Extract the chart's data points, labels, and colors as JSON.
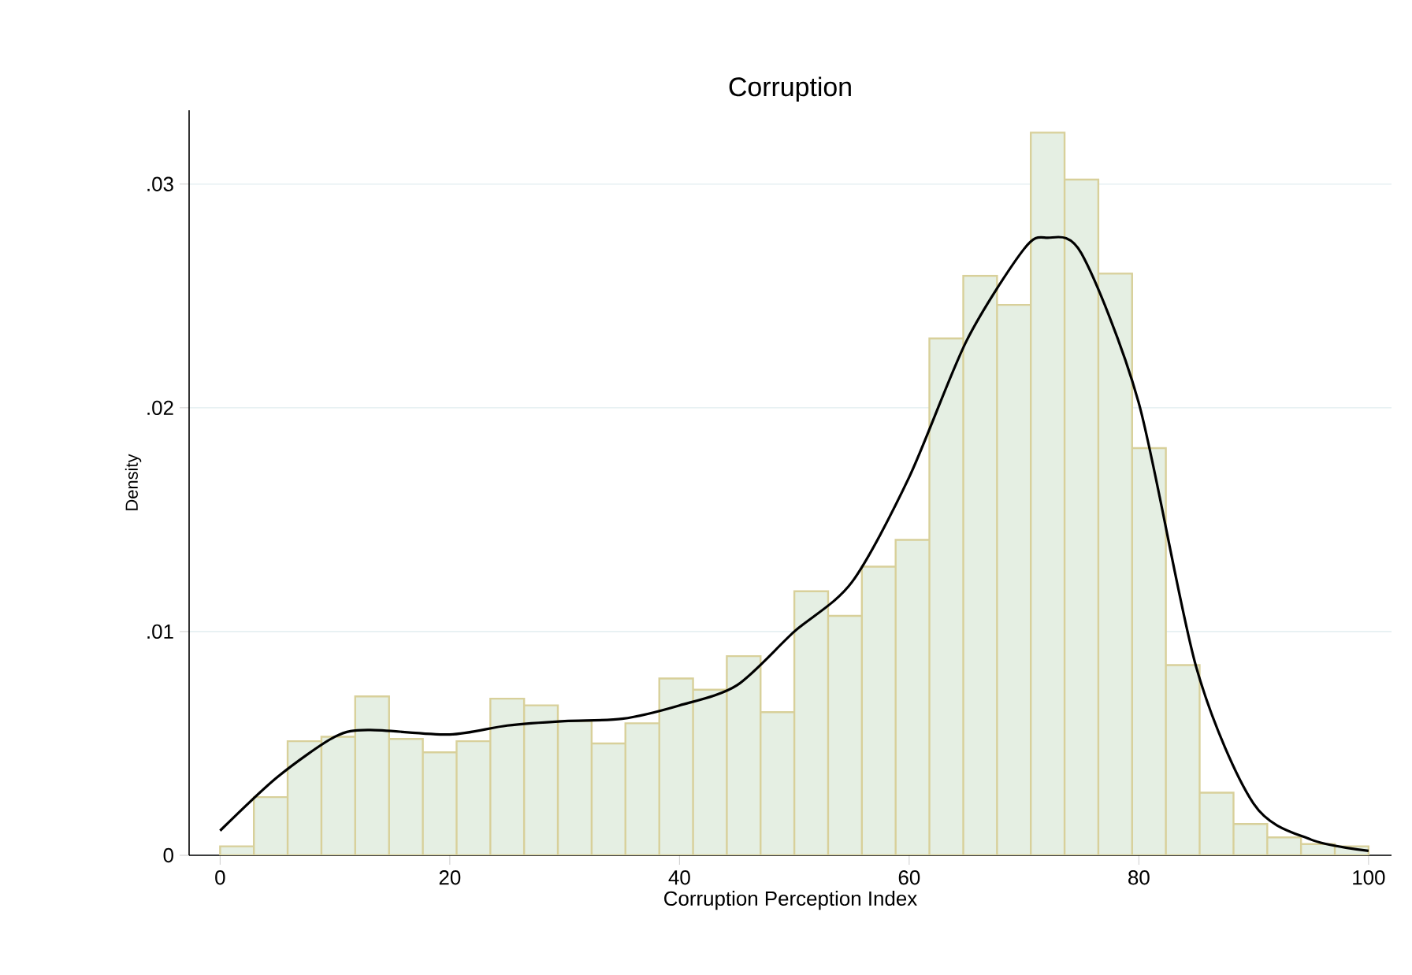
{
  "chart_data": {
    "type": "histogram",
    "title": "Corruption",
    "xlabel": "Corruption Perception Index",
    "ylabel": "Density",
    "xlim": [
      -2.7,
      102
    ],
    "ylim": [
      0,
      0.0333
    ],
    "xticks": [
      0,
      20,
      40,
      60,
      80,
      100
    ],
    "yticks": [
      0,
      {
        "value": 0.01,
        "label": ".01"
      },
      {
        "value": 0.02,
        "label": ".02"
      },
      {
        "value": 0.03,
        "label": ".03"
      }
    ],
    "grid": "y",
    "series": [
      {
        "color": "#e5efe3",
        "bins": [
          0,
          2.94,
          5.88,
          8.82,
          11.76,
          14.71,
          17.65,
          20.59,
          23.53,
          26.47,
          29.41,
          32.35,
          35.29,
          38.24,
          41.18,
          44.12,
          47.06,
          50,
          52.94,
          55.88,
          58.82,
          61.76,
          64.71,
          67.65,
          70.59,
          73.53,
          76.47,
          79.41,
          82.35,
          85.29,
          88.24,
          91.18,
          94.12,
          97.06,
          100
        ],
        "values": [
          0.0004,
          0.0026,
          0.0051,
          0.0053,
          0.0071,
          0.0052,
          0.0046,
          0.0051,
          0.007,
          0.0067,
          0.006,
          0.005,
          0.0059,
          0.0079,
          0.0074,
          0.0089,
          0.0064,
          0.0118,
          0.0107,
          0.0129,
          0.0141,
          0.0231,
          0.0259,
          0.0246,
          0.0323,
          0.0302,
          0.026,
          0.0182,
          0.0085,
          0.0028,
          0.0014,
          0.0008,
          0.0005,
          0.0004
        ]
      },
      {
        "type": "line",
        "color": "#000000",
        "x": [
          0,
          5,
          10,
          13,
          20,
          25,
          30,
          35,
          40,
          45,
          50,
          55,
          60,
          65,
          70,
          72,
          75,
          80,
          85,
          90,
          95,
          100
        ],
        "values": [
          0.0011,
          0.0035,
          0.0053,
          0.0056,
          0.0054,
          0.0058,
          0.006,
          0.0061,
          0.0067,
          0.0076,
          0.01,
          0.0122,
          0.0169,
          0.023,
          0.0271,
          0.0276,
          0.0269,
          0.0202,
          0.0084,
          0.0023,
          0.0007,
          0.0002
        ]
      }
    ]
  }
}
